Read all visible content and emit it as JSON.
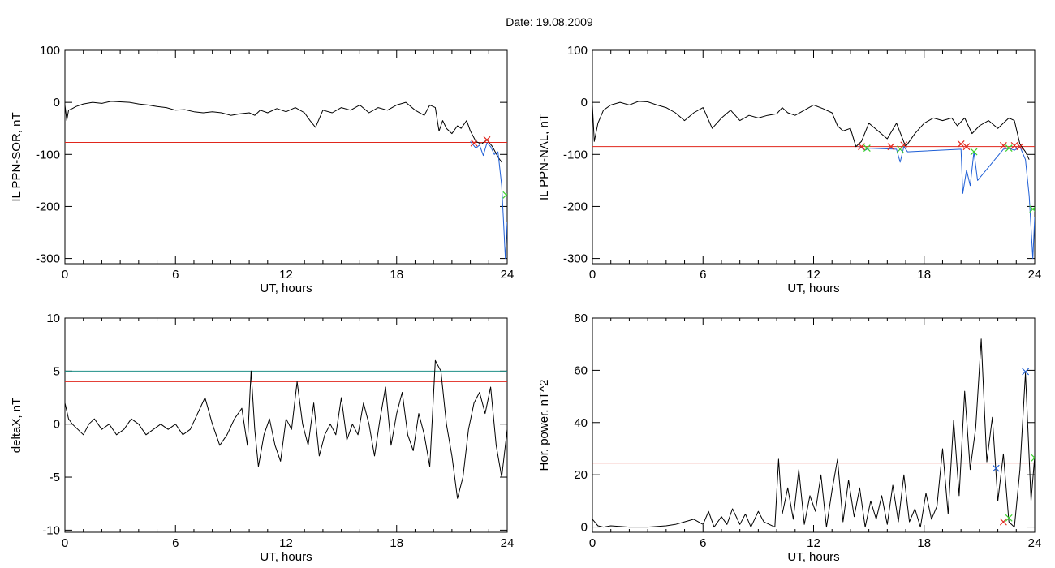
{
  "page": {
    "title": "Date:  19.08.2009"
  },
  "colors": {
    "data_line": "#000000",
    "threshold_red": "#e0261c",
    "threshold_teal": "#1f8f87",
    "highlight_blue": "#1f5fd6",
    "marker_green": "#3cd22e",
    "marker_red": "#e0261c",
    "marker_blue": "#1f5fd6"
  },
  "chart_data": [
    {
      "id": "ppn-sor",
      "type": "line",
      "ylabel": "IL PPN-SOR, nT",
      "xlabel": "UT, hours",
      "xlim": [
        0,
        24
      ],
      "ylim": [
        -310,
        100
      ],
      "xticks": [
        0,
        6,
        12,
        18,
        24
      ],
      "yticks": [
        100,
        0,
        -100,
        -200,
        -300
      ],
      "threshold_lines": [
        {
          "color": "red",
          "y": -77
        }
      ],
      "series": [
        {
          "color": "black",
          "x": [
            0,
            0.1,
            0.2,
            0.4,
            0.6,
            1,
            1.5,
            2,
            2.5,
            3,
            3.5,
            4,
            4.5,
            5,
            5.5,
            6,
            6.5,
            7,
            7.5,
            8,
            8.5,
            9,
            9.5,
            10,
            10.3,
            10.6,
            11,
            11.5,
            12,
            12.5,
            13,
            13.3,
            13.6,
            14,
            14.5,
            15,
            15.5,
            16,
            16.5,
            17,
            17.5,
            18,
            18.5,
            19,
            19.5,
            19.8,
            20.1,
            20.3,
            20.5,
            20.7,
            21,
            21.3,
            21.5,
            21.8,
            22,
            22.3,
            22.6,
            22.9,
            23.2,
            23.5,
            23.7
          ],
          "y": [
            -5,
            -35,
            -15,
            -12,
            -8,
            -3,
            0,
            -2,
            2,
            1,
            0,
            -3,
            -5,
            -8,
            -10,
            -15,
            -14,
            -18,
            -20,
            -18,
            -20,
            -25,
            -22,
            -20,
            -25,
            -15,
            -20,
            -12,
            -18,
            -10,
            -20,
            -35,
            -48,
            -15,
            -20,
            -10,
            -15,
            -5,
            -20,
            -10,
            -15,
            -5,
            0,
            -15,
            -25,
            -5,
            -10,
            -55,
            -35,
            -50,
            -60,
            -45,
            -50,
            -35,
            -55,
            -75,
            -80,
            -72,
            -85,
            -105,
            -115
          ]
        },
        {
          "color": "blue",
          "x": [
            22.0,
            22.3,
            22.5,
            22.7,
            22.9,
            23.1,
            23.3,
            23.5,
            23.7,
            23.8,
            23.9,
            24.0
          ],
          "y": [
            -75,
            -88,
            -82,
            -102,
            -78,
            -85,
            -100,
            -95,
            -160,
            -230,
            -300,
            -230
          ]
        }
      ],
      "markers": [
        {
          "x": 22.2,
          "y": -78,
          "color": "red"
        },
        {
          "x": 22.9,
          "y": -72,
          "color": "red"
        },
        {
          "x": 23.95,
          "y": -178,
          "color": "green"
        }
      ]
    },
    {
      "id": "ppn-nal",
      "type": "line",
      "ylabel": "IL PPN-NAL, nT",
      "xlabel": "UT, hours",
      "xlim": [
        0,
        24
      ],
      "ylim": [
        -310,
        100
      ],
      "xticks": [
        0,
        6,
        12,
        18,
        24
      ],
      "yticks": [
        100,
        0,
        -100,
        -200,
        -300
      ],
      "threshold_lines": [
        {
          "color": "red",
          "y": -85
        }
      ],
      "series": [
        {
          "color": "black",
          "x": [
            0,
            0.1,
            0.3,
            0.6,
            1,
            1.5,
            2,
            2.5,
            3,
            3.5,
            4,
            4.5,
            5,
            5.5,
            6,
            6.5,
            7,
            7.5,
            8,
            8.5,
            9,
            9.5,
            10,
            10.3,
            10.6,
            11,
            11.5,
            12,
            12.5,
            13,
            13.3,
            13.6,
            14,
            14.3,
            14.6,
            15,
            15.5,
            16,
            16.5,
            17,
            17.5,
            18,
            18.5,
            19,
            19.5,
            19.8,
            20.2,
            20.6,
            21,
            21.5,
            22,
            22.3,
            22.6,
            22.9,
            23.2,
            23.5,
            23.7
          ],
          "y": [
            -5,
            -75,
            -40,
            -15,
            -5,
            0,
            -5,
            2,
            1,
            -5,
            -10,
            -20,
            -35,
            -20,
            -10,
            -50,
            -30,
            -15,
            -35,
            -25,
            -30,
            -25,
            -22,
            -10,
            -20,
            -25,
            -15,
            -5,
            -12,
            -20,
            -45,
            -55,
            -50,
            -85,
            -75,
            -40,
            -55,
            -70,
            -40,
            -85,
            -60,
            -40,
            -30,
            -35,
            -30,
            -45,
            -30,
            -60,
            -45,
            -35,
            -50,
            -40,
            -30,
            -35,
            -80,
            -95,
            -110
          ]
        },
        {
          "color": "blue",
          "x": [
            14.5,
            14.8,
            15.0,
            16.5,
            16.7,
            16.9,
            17.1,
            20.0,
            20.1,
            20.3,
            20.5,
            20.7,
            20.9,
            22.3,
            22.6,
            22.9,
            23.2,
            23.5,
            23.7,
            23.9,
            24.0
          ],
          "y": [
            -85,
            -92,
            -88,
            -90,
            -115,
            -85,
            -95,
            -90,
            -175,
            -130,
            -160,
            -95,
            -150,
            -90,
            -88,
            -92,
            -85,
            -110,
            -180,
            -300,
            -220
          ]
        }
      ],
      "markers": [
        {
          "x": 14.6,
          "y": -85,
          "color": "red"
        },
        {
          "x": 14.9,
          "y": -88,
          "color": "green"
        },
        {
          "x": 16.2,
          "y": -85,
          "color": "red"
        },
        {
          "x": 16.7,
          "y": -90,
          "color": "green"
        },
        {
          "x": 16.9,
          "y": -82,
          "color": "red"
        },
        {
          "x": 20.0,
          "y": -80,
          "color": "red"
        },
        {
          "x": 20.3,
          "y": -85,
          "color": "red"
        },
        {
          "x": 20.7,
          "y": -95,
          "color": "green"
        },
        {
          "x": 22.3,
          "y": -83,
          "color": "red"
        },
        {
          "x": 22.6,
          "y": -88,
          "color": "green"
        },
        {
          "x": 22.9,
          "y": -83,
          "color": "red"
        },
        {
          "x": 23.2,
          "y": -85,
          "color": "red"
        },
        {
          "x": 23.9,
          "y": -205,
          "color": "green"
        }
      ]
    },
    {
      "id": "deltax",
      "type": "line",
      "ylabel": "deltaX, nT",
      "xlabel": "UT, hours",
      "xlim": [
        0,
        24
      ],
      "ylim": [
        -10.2,
        10
      ],
      "xticks": [
        0,
        6,
        12,
        18,
        24
      ],
      "yticks": [
        10,
        5,
        0,
        -5,
        -10
      ],
      "ytick_labels": [
        "10",
        "5",
        "0",
        "-5",
        "-10"
      ],
      "threshold_lines": [
        {
          "color": "teal",
          "y": 5
        },
        {
          "color": "red",
          "y": 4
        }
      ],
      "series": [
        {
          "color": "black",
          "x": [
            0,
            0.2,
            0.4,
            0.7,
            1,
            1.3,
            1.6,
            2,
            2.4,
            2.8,
            3.2,
            3.6,
            4,
            4.4,
            4.8,
            5.2,
            5.6,
            6,
            6.4,
            6.8,
            7.2,
            7.6,
            8,
            8.4,
            8.8,
            9.2,
            9.6,
            9.9,
            10.1,
            10.3,
            10.5,
            10.8,
            11.1,
            11.4,
            11.7,
            12,
            12.3,
            12.6,
            12.9,
            13.2,
            13.5,
            13.8,
            14.1,
            14.4,
            14.7,
            15,
            15.3,
            15.6,
            15.9,
            16.2,
            16.5,
            16.8,
            17.1,
            17.4,
            17.7,
            18,
            18.3,
            18.6,
            18.9,
            19.2,
            19.5,
            19.8,
            20.1,
            20.4,
            20.7,
            21,
            21.3,
            21.6,
            21.9,
            22.2,
            22.5,
            22.8,
            23.1,
            23.4,
            23.7,
            24
          ],
          "y": [
            2,
            0.5,
            0,
            -0.5,
            -1,
            0,
            0.5,
            -0.5,
            0,
            -1,
            -0.5,
            0.5,
            0,
            -1,
            -0.5,
            0,
            -0.5,
            0,
            -1,
            -0.5,
            1,
            2.5,
            0,
            -2,
            -1,
            0.5,
            1.5,
            -2,
            5,
            -0.5,
            -4,
            -1,
            0.5,
            -2,
            -3.5,
            0.5,
            -0.5,
            4,
            0,
            -2,
            2,
            -3,
            -1,
            0,
            -1,
            2.5,
            -1.5,
            0,
            -1,
            2,
            0,
            -3,
            0.5,
            3.5,
            -2,
            1,
            3,
            -1,
            -2.5,
            1,
            -1,
            -4,
            6,
            5,
            0,
            -3,
            -7,
            -5,
            -0.5,
            2,
            3,
            1,
            3.5,
            -2,
            -5,
            -0.5
          ]
        }
      ],
      "markers": []
    },
    {
      "id": "hor-power",
      "type": "line",
      "ylabel": "Hor. power, nT^2",
      "xlabel": "UT, hours",
      "xlim": [
        0,
        24
      ],
      "ylim": [
        -2,
        80
      ],
      "xticks": [
        0,
        6,
        12,
        18,
        24
      ],
      "yticks": [
        80,
        60,
        40,
        20,
        0
      ],
      "threshold_lines": [
        {
          "color": "red",
          "y": 24.5
        }
      ],
      "series": [
        {
          "color": "black",
          "x": [
            0,
            0.3,
            0.6,
            1,
            2,
            3,
            4,
            4.5,
            5,
            5.5,
            6,
            6.3,
            6.6,
            7,
            7.3,
            7.6,
            8,
            8.3,
            8.6,
            9,
            9.3,
            9.6,
            9.9,
            10.1,
            10.3,
            10.6,
            10.9,
            11.2,
            11.5,
            11.8,
            12.1,
            12.4,
            12.7,
            13,
            13.3,
            13.6,
            13.9,
            14.2,
            14.5,
            14.8,
            15.1,
            15.4,
            15.7,
            16,
            16.3,
            16.6,
            16.9,
            17.2,
            17.5,
            17.8,
            18.1,
            18.4,
            18.7,
            19,
            19.3,
            19.6,
            19.9,
            20.2,
            20.5,
            20.8,
            21.1,
            21.4,
            21.7,
            22,
            22.3,
            22.6,
            22.9,
            23.2,
            23.5,
            23.8,
            24
          ],
          "y": [
            3,
            0.5,
            0,
            0.5,
            0,
            0,
            0.5,
            1,
            2,
            3,
            1,
            6,
            0,
            4,
            1,
            7,
            1,
            5,
            0,
            6,
            2,
            1,
            0,
            26,
            5,
            15,
            3,
            22,
            1,
            12,
            6,
            20,
            0,
            14,
            26,
            2,
            18,
            4,
            15,
            0,
            10,
            3,
            12,
            1,
            16,
            2,
            20,
            2,
            7,
            0,
            13,
            3,
            8,
            30,
            5,
            41,
            12,
            52,
            22,
            38,
            72,
            25,
            42,
            10,
            28,
            2,
            0,
            22,
            59,
            10,
            27
          ]
        }
      ],
      "markers": [
        {
          "x": 22.6,
          "y": 3.5,
          "color": "green"
        },
        {
          "x": 22.3,
          "y": 2,
          "color": "red"
        },
        {
          "x": 21.9,
          "y": 22.5,
          "color": "blue"
        },
        {
          "x": 23.5,
          "y": 59.5,
          "color": "blue"
        },
        {
          "x": 24.0,
          "y": 26.5,
          "color": "green"
        }
      ]
    }
  ]
}
